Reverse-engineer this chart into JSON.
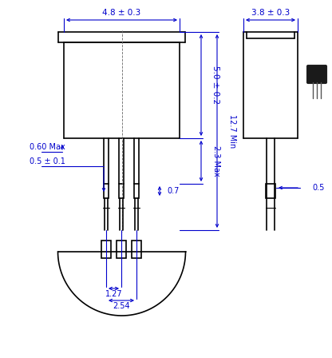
{
  "bg_color": "#ffffff",
  "line_color": "#000000",
  "dim_color": "#0000cc",
  "fig_width": 4.16,
  "fig_height": 4.48,
  "dpi": 100,
  "annotations": {
    "top_width": "4.8 ± 0.3",
    "side_height": "5.0 ± 0.2",
    "right_width": "3.8 ± 0.3",
    "lead_max": "2.3 Max",
    "total_min": "12.7 Min",
    "pin_width": "0.7",
    "lead_diam": "0.60 Max",
    "pin_diam": "0.5 ± 0.1",
    "pitch1": "1.27",
    "pitch2": "2.54",
    "side_diam": "0.5"
  }
}
